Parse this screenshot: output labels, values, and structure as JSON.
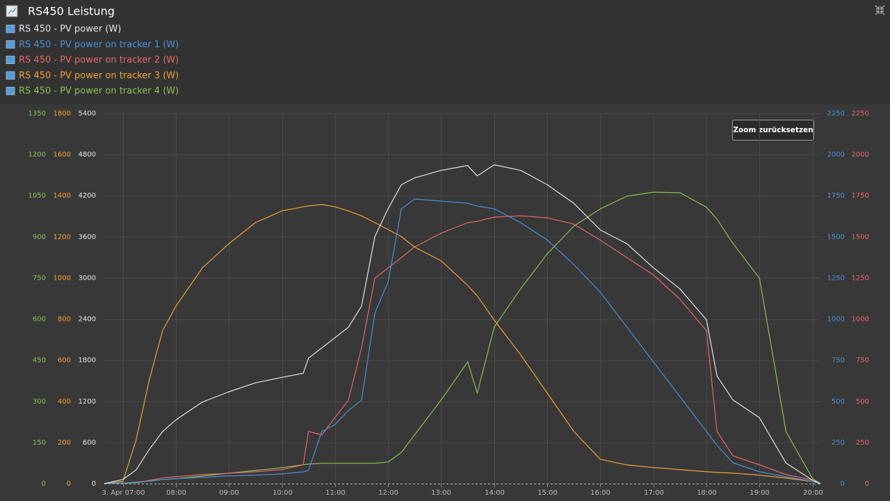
{
  "chart_data": {
    "type": "line",
    "title": "RS450 Leistung",
    "reset_zoom": "Zoom zurücksetzen",
    "grid": true,
    "x": [
      6.65,
      7,
      7.25,
      7.5,
      7.75,
      8,
      8.5,
      9,
      9.5,
      10,
      10.4,
      10.5,
      10.75,
      11,
      11.25,
      11.5,
      11.75,
      12,
      12.25,
      12.5,
      13,
      13.5,
      13.68,
      14,
      14.5,
      15,
      15.5,
      16,
      16.5,
      17,
      17.5,
      18,
      18.2,
      18.5,
      19,
      19.5,
      20,
      20.15
    ],
    "xlim": [
      6.65,
      20.15
    ],
    "xticks": [
      {
        "value": 7,
        "label": "3. Apr 07:00"
      },
      {
        "value": 8,
        "label": "08:00"
      },
      {
        "value": 9,
        "label": "09:00"
      },
      {
        "value": 10,
        "label": "10:00"
      },
      {
        "value": 11,
        "label": "11:00"
      },
      {
        "value": 12,
        "label": "12:00"
      },
      {
        "value": 13,
        "label": "13:00"
      },
      {
        "value": 14,
        "label": "14:00"
      },
      {
        "value": 15,
        "label": "15:00"
      },
      {
        "value": 16,
        "label": "16:00"
      },
      {
        "value": 17,
        "label": "17:00"
      },
      {
        "value": 18,
        "label": "18:00"
      },
      {
        "value": 19,
        "label": "19:00"
      },
      {
        "value": 20,
        "label": "20:00"
      }
    ],
    "series": [
      {
        "name": "RS 450 - PV power (W)",
        "color": "#e6e6e6",
        "axis": "left",
        "ylim": [
          0,
          5400
        ],
        "yticks": [
          0,
          600,
          1200,
          1800,
          2400,
          3000,
          3600,
          4200,
          4800,
          5400
        ],
        "values": [
          0,
          60,
          200,
          500,
          760,
          930,
          1190,
          1340,
          1470,
          1550,
          1610,
          1830,
          1980,
          2130,
          2280,
          2590,
          3600,
          4010,
          4360,
          4460,
          4570,
          4640,
          4490,
          4650,
          4570,
          4360,
          4090,
          3700,
          3500,
          3150,
          2840,
          2390,
          1570,
          1220,
          960,
          300,
          50,
          0
        ]
      },
      {
        "name": "RS 450 - PV power on tracker 1 (W)",
        "color": "#4a90d9",
        "axis": "right",
        "ylim": [
          0,
          2250
        ],
        "yticks": [
          0,
          250,
          500,
          750,
          1000,
          1250,
          1500,
          1750,
          2000,
          2250
        ],
        "values": [
          0,
          2,
          5,
          15,
          25,
          30,
          38,
          47,
          51,
          59,
          72,
          80,
          317,
          359,
          444,
          507,
          1036,
          1226,
          1670,
          1730,
          1717,
          1704,
          1687,
          1670,
          1586,
          1480,
          1332,
          1163,
          952,
          740,
          529,
          317,
          233,
          127,
          72,
          42,
          13,
          0
        ]
      },
      {
        "name": "RS 450 - PV power on tracker 2 (W)",
        "color": "#e8676a",
        "axis": "right",
        "ylim": [
          0,
          2250
        ],
        "yticks": [
          0,
          250,
          500,
          750,
          1000,
          1250,
          1500,
          1750,
          2000,
          2250
        ],
        "values": [
          0,
          2,
          5,
          20,
          35,
          42,
          55,
          63,
          72,
          85,
          114,
          317,
          296,
          402,
          507,
          825,
          1248,
          1311,
          1374,
          1438,
          1522,
          1586,
          1594,
          1620,
          1628,
          1615,
          1577,
          1480,
          1374,
          1269,
          1121,
          930,
          317,
          169,
          114,
          55,
          21,
          0
        ]
      },
      {
        "name": "RS 450 - PV power on tracker 3 (W)",
        "color": "#f0a33a",
        "axis": "left",
        "ylim": [
          0,
          1800
        ],
        "yticks": [
          0,
          200,
          400,
          600,
          800,
          1000,
          1200,
          1400,
          1600,
          1800
        ],
        "values": [
          0,
          10,
          213,
          507,
          744,
          863,
          1049,
          1167,
          1269,
          1326,
          1346,
          1350,
          1357,
          1346,
          1326,
          1302,
          1269,
          1235,
          1201,
          1150,
          1083,
          964,
          913,
          795,
          626,
          440,
          254,
          118,
          91,
          78,
          68,
          58,
          54,
          51,
          41,
          27,
          10,
          0
        ]
      },
      {
        "name": "RS 450 - PV power on tracker 4 (W)",
        "color": "#8cc152",
        "axis": "left",
        "ylim": [
          0,
          1350
        ],
        "yticks": [
          0,
          150,
          300,
          450,
          600,
          750,
          900,
          1050,
          1200,
          1350
        ],
        "values": [
          0,
          2,
          5,
          10,
          15,
          18,
          28,
          38,
          48,
          58,
          69,
          71,
          74,
          74,
          74,
          74,
          74,
          79,
          114,
          178,
          305,
          444,
          330,
          571,
          711,
          838,
          939,
          1002,
          1048,
          1063,
          1061,
          1008,
          964,
          876,
          749,
          190,
          18,
          0
        ]
      }
    ]
  }
}
